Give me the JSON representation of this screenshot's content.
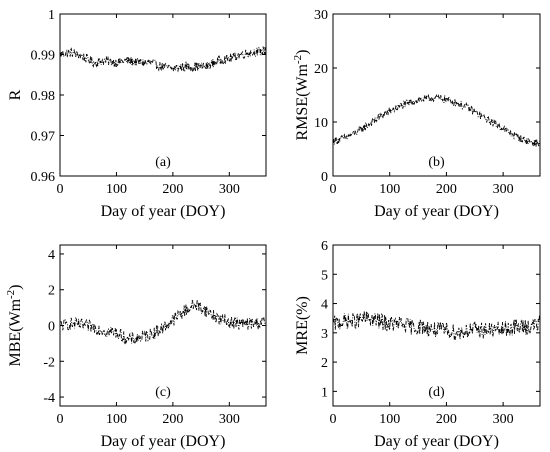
{
  "chart_data": [
    {
      "type": "line",
      "panel_label": "(a)",
      "xlabel": "Day of year (DOY)",
      "ylabel": "R",
      "ylabel_sup": "",
      "ylabel_tail": "",
      "xlim": [
        0,
        365
      ],
      "ylim": [
        0.96,
        1.0
      ],
      "xticks": [
        "0",
        "100",
        "200",
        "300"
      ],
      "xtick_values": [
        0,
        100,
        200,
        300
      ],
      "yticks": [
        "0.96",
        "0.97",
        "0.98",
        "0.99",
        "1"
      ],
      "ytick_values": [
        0.96,
        0.97,
        0.98,
        0.99,
        1.0
      ],
      "series": [
        {
          "line_style": "dash-dot",
          "x": [
            1,
            20,
            40,
            60,
            80,
            100,
            120,
            140,
            160,
            180,
            200,
            220,
            240,
            260,
            280,
            300,
            320,
            340,
            365
          ],
          "y": [
            0.99,
            0.9905,
            0.9895,
            0.988,
            0.9885,
            0.988,
            0.9885,
            0.988,
            0.988,
            0.987,
            0.9865,
            0.987,
            0.987,
            0.987,
            0.9885,
            0.989,
            0.99,
            0.9905,
            0.991
          ],
          "noise": 0.0022
        }
      ]
    },
    {
      "type": "line",
      "panel_label": "(b)",
      "xlabel": "Day of year (DOY)",
      "ylabel": "RMSE(Wm",
      "ylabel_sup": "-2",
      "ylabel_tail": ")",
      "xlim": [
        0,
        365
      ],
      "ylim": [
        0,
        30
      ],
      "xticks": [
        "0",
        "100",
        "200",
        "300"
      ],
      "xtick_values": [
        0,
        100,
        200,
        300
      ],
      "yticks": [
        "0",
        "10",
        "20",
        "30"
      ],
      "ytick_values": [
        0,
        10,
        20,
        30
      ],
      "series": [
        {
          "line_style": "dash-dot",
          "x": [
            1,
            20,
            40,
            60,
            80,
            100,
            120,
            140,
            160,
            180,
            200,
            220,
            240,
            260,
            280,
            300,
            320,
            340,
            365
          ],
          "y": [
            6.5,
            7.0,
            8.0,
            9.3,
            10.8,
            12.0,
            13.0,
            13.8,
            14.2,
            14.5,
            14.2,
            13.5,
            12.5,
            11.2,
            10.0,
            8.8,
            7.5,
            6.5,
            6.0
          ],
          "noise": 1.4
        }
      ]
    },
    {
      "type": "line",
      "panel_label": "(c)",
      "xlabel": "Day of year (DOY)",
      "ylabel": "MBE(Wm",
      "ylabel_sup": "-2",
      "ylabel_tail": ")",
      "xlim": [
        0,
        365
      ],
      "ylim": [
        -4.5,
        4.5
      ],
      "xticks": [
        "0",
        "100",
        "200",
        "300"
      ],
      "xtick_values": [
        0,
        100,
        200,
        300
      ],
      "yticks": [
        "-4",
        "-2",
        "0",
        "2",
        "4"
      ],
      "ytick_values": [
        -4,
        -2,
        0,
        2,
        4
      ],
      "series": [
        {
          "line_style": "dash-dot",
          "x": [
            1,
            20,
            40,
            60,
            80,
            100,
            120,
            140,
            160,
            180,
            200,
            220,
            240,
            260,
            280,
            300,
            320,
            340,
            365
          ],
          "y": [
            0.0,
            0.1,
            0.0,
            -0.1,
            -0.3,
            -0.4,
            -0.8,
            -0.7,
            -0.5,
            -0.2,
            0.3,
            0.8,
            1.2,
            0.8,
            0.4,
            0.2,
            0.1,
            0.1,
            0.2
          ],
          "noise": 0.7
        }
      ]
    },
    {
      "type": "line",
      "panel_label": "(d)",
      "xlabel": "Day of year (DOY)",
      "ylabel": "MRE(%)",
      "ylabel_sup": "",
      "ylabel_tail": "",
      "xlim": [
        0,
        365
      ],
      "ylim": [
        0.5,
        6
      ],
      "xticks": [
        "0",
        "100",
        "200",
        "300"
      ],
      "xtick_values": [
        0,
        100,
        200,
        300
      ],
      "yticks": [
        "1",
        "2",
        "3",
        "4",
        "5",
        "6"
      ],
      "ytick_values": [
        1,
        2,
        3,
        4,
        5,
        6
      ],
      "series": [
        {
          "line_style": "dash-dot",
          "x": [
            1,
            20,
            40,
            60,
            80,
            100,
            120,
            140,
            160,
            180,
            200,
            220,
            240,
            260,
            280,
            300,
            320,
            340,
            365
          ],
          "y": [
            3.3,
            3.4,
            3.4,
            3.5,
            3.4,
            3.3,
            3.3,
            3.2,
            3.2,
            3.1,
            3.1,
            3.0,
            3.1,
            3.1,
            3.1,
            3.1,
            3.2,
            3.2,
            3.3
          ],
          "noise": 0.55
        }
      ]
    }
  ]
}
